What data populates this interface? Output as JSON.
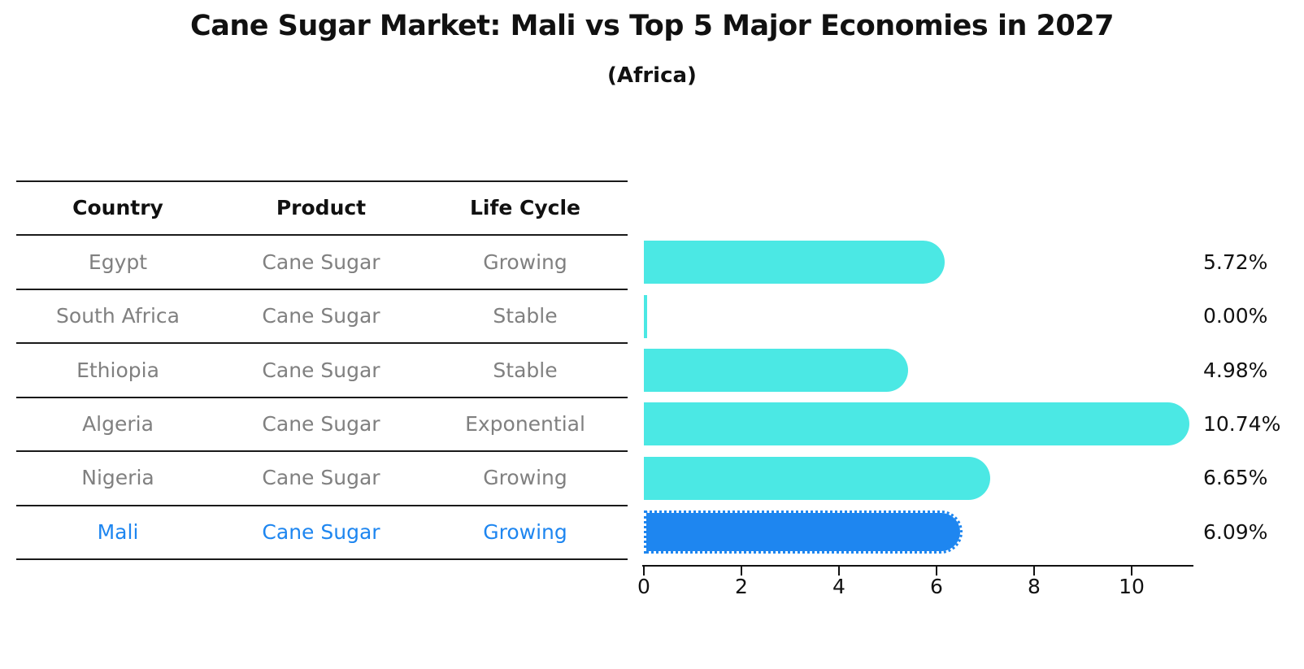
{
  "page": {
    "background": "#ffffff"
  },
  "header": {
    "title": "Cane Sugar Market: Mali vs Top 5 Major Economies in 2027",
    "subtitle": "(Africa)"
  },
  "table": {
    "headers": [
      "Country",
      "Product",
      "Life Cycle"
    ],
    "rows": [
      {
        "country": "Egypt",
        "product": "Cane Sugar",
        "life_cycle": "Growing",
        "highlight": false
      },
      {
        "country": "South Africa",
        "product": "Cane Sugar",
        "life_cycle": "Stable",
        "highlight": false
      },
      {
        "country": "Ethiopia",
        "product": "Cane Sugar",
        "life_cycle": "Stable",
        "highlight": false
      },
      {
        "country": "Algeria",
        "product": "Cane Sugar",
        "life_cycle": "Exponential",
        "highlight": false
      },
      {
        "country": "Nigeria",
        "product": "Cane Sugar",
        "life_cycle": "Growing",
        "highlight": false
      },
      {
        "country": "Mali",
        "product": "Cane Sugar",
        "life_cycle": "Growing",
        "highlight": true
      }
    ]
  },
  "chart_data": {
    "type": "bar",
    "orientation": "horizontal",
    "title": "Cane Sugar Market: Mali vs Top 5 Major Economies in 2027",
    "subtitle": "(Africa)",
    "categories": [
      "Egypt",
      "South Africa",
      "Ethiopia",
      "Algeria",
      "Nigeria",
      "Mali"
    ],
    "values": [
      5.72,
      0.0,
      4.98,
      10.74,
      6.65,
      6.09
    ],
    "value_labels": [
      "5.72%",
      "0.00%",
      "4.98%",
      "10.74%",
      "6.65%",
      "6.09%"
    ],
    "xlabel": "",
    "ylabel": "",
    "xlim": [
      0,
      11.3
    ],
    "xticks": [
      0,
      2,
      4,
      6,
      8,
      10
    ],
    "grid": false,
    "legend": null,
    "highlight_index": 5,
    "colors": {
      "bar": "#4BE8E4",
      "highlight_bar": "#1E86F0",
      "row_text": "#808080",
      "highlight_text": "#1E86F0",
      "axis": "#111111",
      "table_line": "#1a1a1a"
    }
  }
}
